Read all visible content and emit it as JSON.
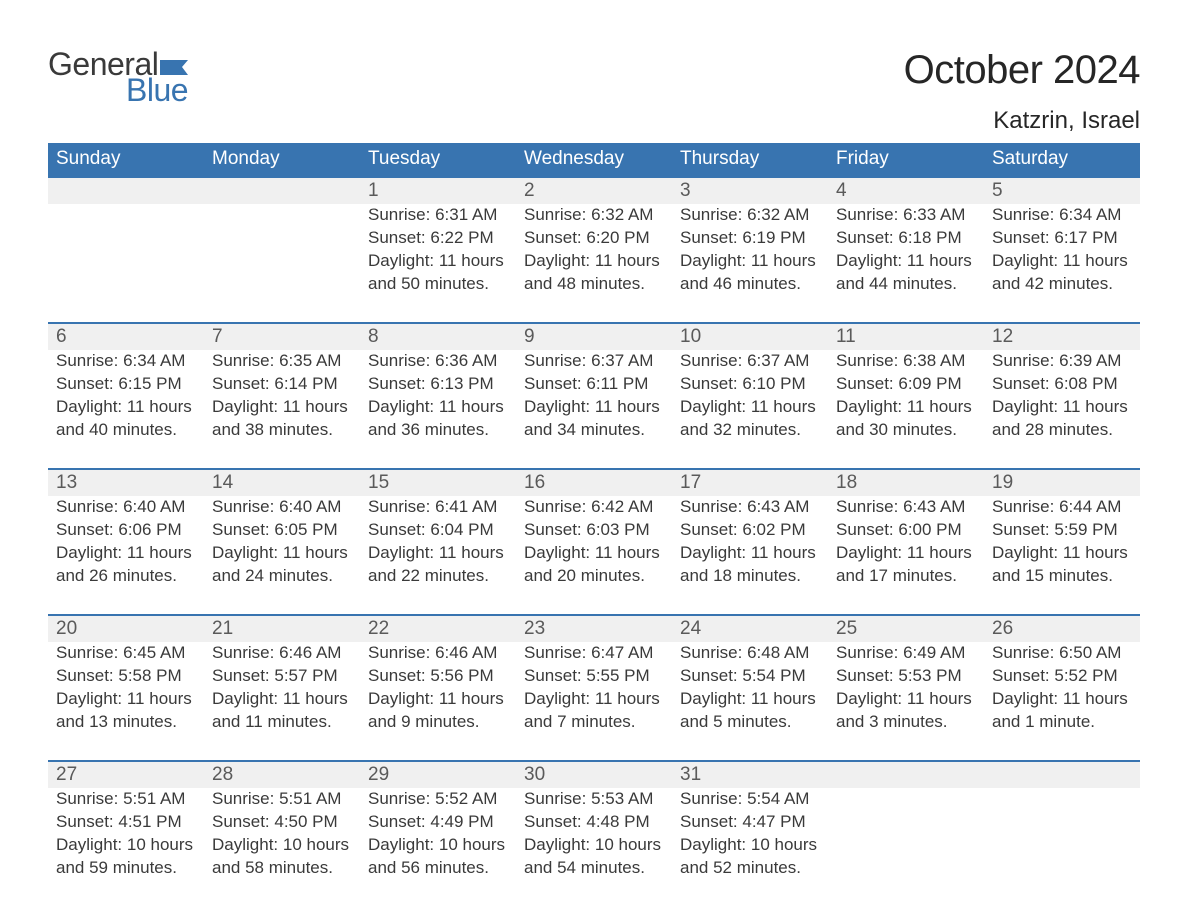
{
  "brand": {
    "word1": "General",
    "word2": "Blue",
    "flag_color": "#3874b0",
    "text_color_dark": "#3a3a3a",
    "text_color_blue": "#3874b0"
  },
  "title": "October 2024",
  "location": "Katzrin, Israel",
  "colors": {
    "header_bg": "#3874b0",
    "header_fg": "#ffffff",
    "band_bg": "#f0f0f0",
    "band_border": "#3874b0",
    "body_text": "#3a3a3a",
    "daynum_text": "#5a5a5a",
    "page_bg": "#ffffff"
  },
  "typography": {
    "title_fontsize": 40,
    "location_fontsize": 24,
    "dow_fontsize": 19,
    "daynum_fontsize": 19,
    "body_fontsize": 17,
    "logo_fontsize": 32
  },
  "days_of_week": [
    "Sunday",
    "Monday",
    "Tuesday",
    "Wednesday",
    "Thursday",
    "Friday",
    "Saturday"
  ],
  "weeks": [
    [
      {
        "n": "",
        "lines": [
          "",
          "",
          "",
          ""
        ]
      },
      {
        "n": "",
        "lines": [
          "",
          "",
          "",
          ""
        ]
      },
      {
        "n": "1",
        "lines": [
          "Sunrise: 6:31 AM",
          "Sunset: 6:22 PM",
          "Daylight: 11 hours",
          "and 50 minutes."
        ]
      },
      {
        "n": "2",
        "lines": [
          "Sunrise: 6:32 AM",
          "Sunset: 6:20 PM",
          "Daylight: 11 hours",
          "and 48 minutes."
        ]
      },
      {
        "n": "3",
        "lines": [
          "Sunrise: 6:32 AM",
          "Sunset: 6:19 PM",
          "Daylight: 11 hours",
          "and 46 minutes."
        ]
      },
      {
        "n": "4",
        "lines": [
          "Sunrise: 6:33 AM",
          "Sunset: 6:18 PM",
          "Daylight: 11 hours",
          "and 44 minutes."
        ]
      },
      {
        "n": "5",
        "lines": [
          "Sunrise: 6:34 AM",
          "Sunset: 6:17 PM",
          "Daylight: 11 hours",
          "and 42 minutes."
        ]
      }
    ],
    [
      {
        "n": "6",
        "lines": [
          "Sunrise: 6:34 AM",
          "Sunset: 6:15 PM",
          "Daylight: 11 hours",
          "and 40 minutes."
        ]
      },
      {
        "n": "7",
        "lines": [
          "Sunrise: 6:35 AM",
          "Sunset: 6:14 PM",
          "Daylight: 11 hours",
          "and 38 minutes."
        ]
      },
      {
        "n": "8",
        "lines": [
          "Sunrise: 6:36 AM",
          "Sunset: 6:13 PM",
          "Daylight: 11 hours",
          "and 36 minutes."
        ]
      },
      {
        "n": "9",
        "lines": [
          "Sunrise: 6:37 AM",
          "Sunset: 6:11 PM",
          "Daylight: 11 hours",
          "and 34 minutes."
        ]
      },
      {
        "n": "10",
        "lines": [
          "Sunrise: 6:37 AM",
          "Sunset: 6:10 PM",
          "Daylight: 11 hours",
          "and 32 minutes."
        ]
      },
      {
        "n": "11",
        "lines": [
          "Sunrise: 6:38 AM",
          "Sunset: 6:09 PM",
          "Daylight: 11 hours",
          "and 30 minutes."
        ]
      },
      {
        "n": "12",
        "lines": [
          "Sunrise: 6:39 AM",
          "Sunset: 6:08 PM",
          "Daylight: 11 hours",
          "and 28 minutes."
        ]
      }
    ],
    [
      {
        "n": "13",
        "lines": [
          "Sunrise: 6:40 AM",
          "Sunset: 6:06 PM",
          "Daylight: 11 hours",
          "and 26 minutes."
        ]
      },
      {
        "n": "14",
        "lines": [
          "Sunrise: 6:40 AM",
          "Sunset: 6:05 PM",
          "Daylight: 11 hours",
          "and 24 minutes."
        ]
      },
      {
        "n": "15",
        "lines": [
          "Sunrise: 6:41 AM",
          "Sunset: 6:04 PM",
          "Daylight: 11 hours",
          "and 22 minutes."
        ]
      },
      {
        "n": "16",
        "lines": [
          "Sunrise: 6:42 AM",
          "Sunset: 6:03 PM",
          "Daylight: 11 hours",
          "and 20 minutes."
        ]
      },
      {
        "n": "17",
        "lines": [
          "Sunrise: 6:43 AM",
          "Sunset: 6:02 PM",
          "Daylight: 11 hours",
          "and 18 minutes."
        ]
      },
      {
        "n": "18",
        "lines": [
          "Sunrise: 6:43 AM",
          "Sunset: 6:00 PM",
          "Daylight: 11 hours",
          "and 17 minutes."
        ]
      },
      {
        "n": "19",
        "lines": [
          "Sunrise: 6:44 AM",
          "Sunset: 5:59 PM",
          "Daylight: 11 hours",
          "and 15 minutes."
        ]
      }
    ],
    [
      {
        "n": "20",
        "lines": [
          "Sunrise: 6:45 AM",
          "Sunset: 5:58 PM",
          "Daylight: 11 hours",
          "and 13 minutes."
        ]
      },
      {
        "n": "21",
        "lines": [
          "Sunrise: 6:46 AM",
          "Sunset: 5:57 PM",
          "Daylight: 11 hours",
          "and 11 minutes."
        ]
      },
      {
        "n": "22",
        "lines": [
          "Sunrise: 6:46 AM",
          "Sunset: 5:56 PM",
          "Daylight: 11 hours",
          "and 9 minutes."
        ]
      },
      {
        "n": "23",
        "lines": [
          "Sunrise: 6:47 AM",
          "Sunset: 5:55 PM",
          "Daylight: 11 hours",
          "and 7 minutes."
        ]
      },
      {
        "n": "24",
        "lines": [
          "Sunrise: 6:48 AM",
          "Sunset: 5:54 PM",
          "Daylight: 11 hours",
          "and 5 minutes."
        ]
      },
      {
        "n": "25",
        "lines": [
          "Sunrise: 6:49 AM",
          "Sunset: 5:53 PM",
          "Daylight: 11 hours",
          "and 3 minutes."
        ]
      },
      {
        "n": "26",
        "lines": [
          "Sunrise: 6:50 AM",
          "Sunset: 5:52 PM",
          "Daylight: 11 hours",
          "and 1 minute."
        ]
      }
    ],
    [
      {
        "n": "27",
        "lines": [
          "Sunrise: 5:51 AM",
          "Sunset: 4:51 PM",
          "Daylight: 10 hours",
          "and 59 minutes."
        ]
      },
      {
        "n": "28",
        "lines": [
          "Sunrise: 5:51 AM",
          "Sunset: 4:50 PM",
          "Daylight: 10 hours",
          "and 58 minutes."
        ]
      },
      {
        "n": "29",
        "lines": [
          "Sunrise: 5:52 AM",
          "Sunset: 4:49 PM",
          "Daylight: 10 hours",
          "and 56 minutes."
        ]
      },
      {
        "n": "30",
        "lines": [
          "Sunrise: 5:53 AM",
          "Sunset: 4:48 PM",
          "Daylight: 10 hours",
          "and 54 minutes."
        ]
      },
      {
        "n": "31",
        "lines": [
          "Sunrise: 5:54 AM",
          "Sunset: 4:47 PM",
          "Daylight: 10 hours",
          "and 52 minutes."
        ]
      },
      {
        "n": "",
        "lines": [
          "",
          "",
          "",
          ""
        ]
      },
      {
        "n": "",
        "lines": [
          "",
          "",
          "",
          ""
        ]
      }
    ]
  ]
}
